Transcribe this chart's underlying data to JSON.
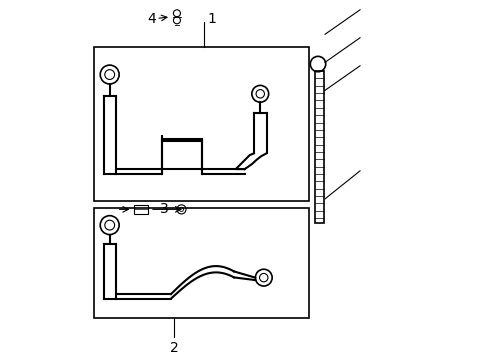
{
  "bg_color": "#ffffff",
  "line_color": "#000000",
  "light_line_color": "#aaaaaa",
  "title": "",
  "fig_width": 4.89,
  "fig_height": 3.6,
  "dpi": 100,
  "label1": {
    "text": "1"
  },
  "label2": {
    "text": "2"
  },
  "label3": {
    "text": "3"
  },
  "label4": {
    "text": "4"
  },
  "font_size": 10
}
